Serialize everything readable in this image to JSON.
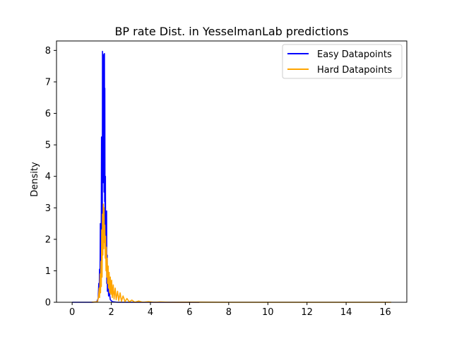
{
  "chart_data": {
    "type": "line",
    "title": "BP rate Dist. in YesselmanLab predictions",
    "xlabel": "",
    "ylabel": "Density",
    "xlim": [
      -0.8,
      17.1
    ],
    "ylim": [
      0,
      8.3
    ],
    "xticks": [
      "0",
      "2",
      "4",
      "6",
      "8",
      "10",
      "12",
      "14",
      "16"
    ],
    "yticks": [
      "0",
      "1",
      "2",
      "3",
      "4",
      "5",
      "6",
      "7",
      "8"
    ],
    "grid": false,
    "legend_position": "top-right",
    "series": [
      {
        "name": "Easy Datapoints",
        "color": "#0000ff",
        "points": [
          [
            0.0,
            0.0
          ],
          [
            1.0,
            0.0
          ],
          [
            1.25,
            0.01
          ],
          [
            1.33,
            0.12
          ],
          [
            1.36,
            0.6
          ],
          [
            1.38,
            0.2
          ],
          [
            1.4,
            1.05
          ],
          [
            1.42,
            0.4
          ],
          [
            1.44,
            2.5
          ],
          [
            1.45,
            1.2
          ],
          [
            1.47,
            2.3
          ],
          [
            1.48,
            1.0
          ],
          [
            1.5,
            5.25
          ],
          [
            1.51,
            3.0
          ],
          [
            1.53,
            5.2
          ],
          [
            1.54,
            2.0
          ],
          [
            1.55,
            7.97
          ],
          [
            1.56,
            4.0
          ],
          [
            1.57,
            7.0
          ],
          [
            1.58,
            3.8
          ],
          [
            1.6,
            7.85
          ],
          [
            1.61,
            4.2
          ],
          [
            1.62,
            7.88
          ],
          [
            1.63,
            3.5
          ],
          [
            1.65,
            7.9
          ],
          [
            1.66,
            3.2
          ],
          [
            1.67,
            6.8
          ],
          [
            1.68,
            2.4
          ],
          [
            1.7,
            4.0
          ],
          [
            1.71,
            1.6
          ],
          [
            1.73,
            2.6
          ],
          [
            1.74,
            1.0
          ],
          [
            1.76,
            2.9
          ],
          [
            1.77,
            0.6
          ],
          [
            1.79,
            1.5
          ],
          [
            1.8,
            0.35
          ],
          [
            1.83,
            0.75
          ],
          [
            1.86,
            0.2
          ],
          [
            1.9,
            0.3
          ],
          [
            1.95,
            0.08
          ],
          [
            2.05,
            0.02
          ],
          [
            2.3,
            0.0
          ],
          [
            6.5,
            0.0
          ]
        ]
      },
      {
        "name": "Hard Datapoints",
        "color": "#ffa500",
        "points": [
          [
            1.0,
            0.0
          ],
          [
            1.3,
            0.02
          ],
          [
            1.35,
            0.2
          ],
          [
            1.38,
            0.45
          ],
          [
            1.4,
            0.15
          ],
          [
            1.43,
            0.9
          ],
          [
            1.45,
            0.3
          ],
          [
            1.47,
            1.3
          ],
          [
            1.49,
            0.5
          ],
          [
            1.51,
            2.3
          ],
          [
            1.53,
            0.8
          ],
          [
            1.55,
            2.8
          ],
          [
            1.57,
            1.5
          ],
          [
            1.59,
            3.12
          ],
          [
            1.61,
            1.7
          ],
          [
            1.63,
            3.0
          ],
          [
            1.65,
            1.9
          ],
          [
            1.67,
            2.45
          ],
          [
            1.69,
            1.4
          ],
          [
            1.71,
            2.1
          ],
          [
            1.73,
            1.0
          ],
          [
            1.75,
            1.75
          ],
          [
            1.77,
            0.8
          ],
          [
            1.79,
            1.4
          ],
          [
            1.81,
            0.6
          ],
          [
            1.84,
            1.15
          ],
          [
            1.86,
            0.45
          ],
          [
            1.89,
            0.95
          ],
          [
            1.92,
            0.3
          ],
          [
            1.95,
            0.8
          ],
          [
            1.98,
            0.25
          ],
          [
            2.02,
            0.7
          ],
          [
            2.05,
            0.15
          ],
          [
            2.1,
            0.55
          ],
          [
            2.14,
            0.1
          ],
          [
            2.2,
            0.45
          ],
          [
            2.25,
            0.08
          ],
          [
            2.32,
            0.35
          ],
          [
            2.38,
            0.05
          ],
          [
            2.45,
            0.3
          ],
          [
            2.52,
            0.03
          ],
          [
            2.6,
            0.2
          ],
          [
            2.7,
            0.02
          ],
          [
            2.8,
            0.12
          ],
          [
            2.92,
            0.01
          ],
          [
            3.05,
            0.07
          ],
          [
            3.2,
            0.0
          ],
          [
            3.4,
            0.04
          ],
          [
            3.6,
            0.0
          ],
          [
            3.9,
            0.02
          ],
          [
            4.2,
            0.0
          ],
          [
            4.5,
            0.01
          ],
          [
            5.0,
            0.0
          ],
          [
            6.5,
            0.005
          ],
          [
            8.0,
            0.0
          ],
          [
            16.3,
            0.0
          ]
        ]
      }
    ]
  }
}
